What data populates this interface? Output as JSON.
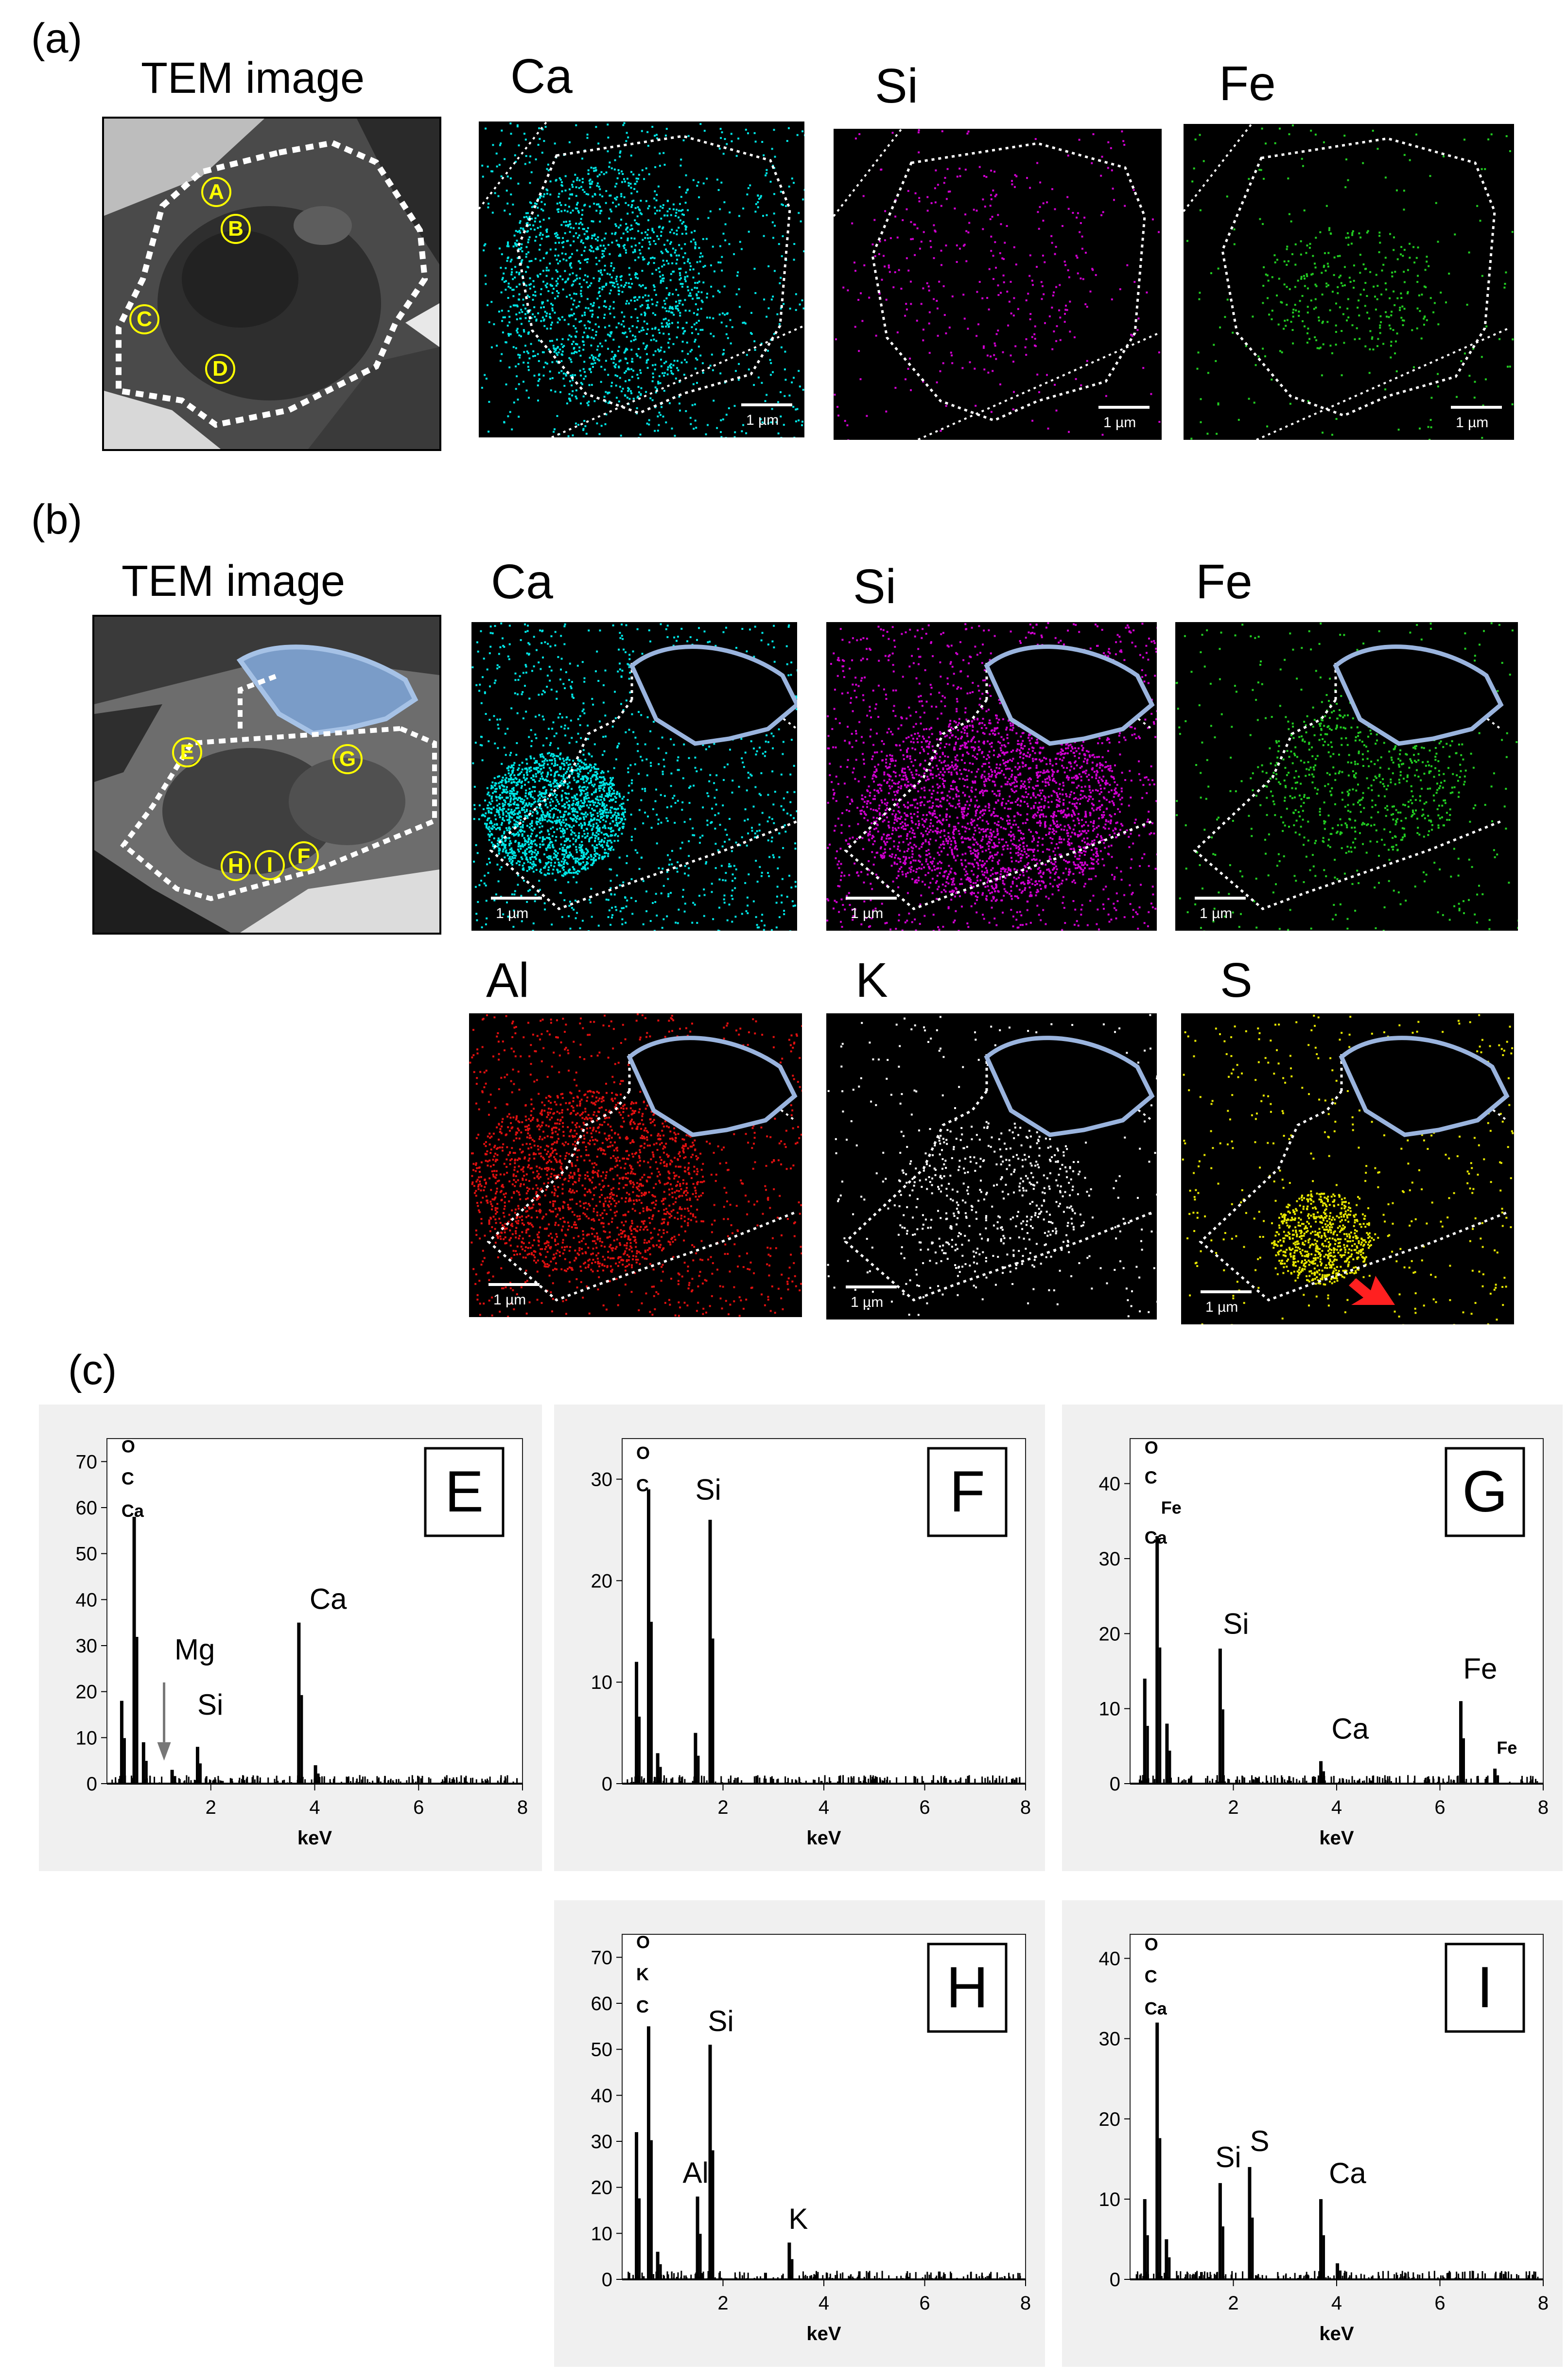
{
  "panel_a": {
    "label": "(a)",
    "tem_title": "TEM image",
    "spots": [
      "A",
      "B",
      "C",
      "D"
    ],
    "maps": [
      {
        "element": "Ca",
        "color": "#00e5e5",
        "density": 1900,
        "scale": "1 µm"
      },
      {
        "element": "Si",
        "color": "#d000d0",
        "density": 380,
        "scale": "1 µm"
      },
      {
        "element": "Fe",
        "color": "#22cc22",
        "density": 420,
        "scale": "1 µm"
      }
    ]
  },
  "panel_b": {
    "label": "(b)",
    "tem_title": "TEM image",
    "spots": [
      "E",
      "G",
      "H",
      "I",
      "F"
    ],
    "maps": [
      {
        "element": "Ca",
        "color": "#00e5e5",
        "density": 2600,
        "scale": "1 µm"
      },
      {
        "element": "Si",
        "color": "#d000d0",
        "density": 3200,
        "scale": "1 µm"
      },
      {
        "element": "Fe",
        "color": "#22cc22",
        "density": 900,
        "scale": "1 µm"
      },
      {
        "element": "Al",
        "color": "#e01010",
        "density": 2400,
        "scale": "1 µm"
      },
      {
        "element": "K",
        "color": "#ffffff",
        "density": 700,
        "scale": "1 µm"
      },
      {
        "element": "S",
        "color": "#e6e600",
        "density": 1100,
        "scale": "1 µm"
      }
    ],
    "arrow_color": "#ff2020"
  },
  "panel_c": {
    "label": "(c)",
    "chart_data": [
      {
        "type": "bar",
        "title": "E",
        "xlabel": "keV",
        "xlim": [
          0,
          8
        ],
        "ylim": [
          0,
          75
        ],
        "yticks": [
          0,
          10,
          20,
          30,
          40,
          50,
          60,
          70
        ],
        "xticks": [
          2,
          4,
          6,
          8
        ],
        "peaks": [
          [
            0.28,
            18
          ],
          [
            0.52,
            58
          ],
          [
            0.7,
            9
          ],
          [
            1.25,
            3
          ],
          [
            1.74,
            8
          ],
          [
            3.69,
            35
          ],
          [
            4.01,
            4
          ]
        ],
        "annotations": [
          "O",
          "C",
          "Ca",
          "Mg",
          "Si",
          "Ca"
        ]
      },
      {
        "type": "bar",
        "title": "F",
        "xlabel": "keV",
        "xlim": [
          0,
          8
        ],
        "ylim": [
          0,
          34
        ],
        "yticks": [
          0,
          10,
          20,
          30
        ],
        "xticks": [
          2,
          4,
          6,
          8
        ],
        "peaks": [
          [
            0.28,
            12
          ],
          [
            0.52,
            29
          ],
          [
            0.7,
            3
          ],
          [
            1.45,
            5
          ],
          [
            1.74,
            26
          ]
        ],
        "annotations": [
          "O",
          "C",
          "Si"
        ]
      },
      {
        "type": "bar",
        "title": "G",
        "xlabel": "keV",
        "xlim": [
          0,
          8
        ],
        "ylim": [
          0,
          46
        ],
        "yticks": [
          0,
          10,
          20,
          30,
          40
        ],
        "xticks": [
          2,
          4,
          6,
          8
        ],
        "peaks": [
          [
            0.28,
            14
          ],
          [
            0.52,
            33
          ],
          [
            0.71,
            8
          ],
          [
            1.74,
            18
          ],
          [
            3.69,
            3
          ],
          [
            6.4,
            11
          ],
          [
            7.06,
            2
          ]
        ],
        "annotations": [
          "O",
          "C",
          "Fe",
          "Ca",
          "Si",
          "Ca",
          "Fe",
          "Fe"
        ]
      },
      {
        "type": "bar",
        "title": "H",
        "xlabel": "keV",
        "xlim": [
          0,
          8
        ],
        "ylim": [
          0,
          75
        ],
        "yticks": [
          0,
          10,
          20,
          30,
          40,
          50,
          60,
          70
        ],
        "xticks": [
          2,
          4,
          6,
          8
        ],
        "peaks": [
          [
            0.28,
            32
          ],
          [
            0.52,
            55
          ],
          [
            0.7,
            6
          ],
          [
            1.49,
            18
          ],
          [
            1.74,
            51
          ],
          [
            3.31,
            8
          ]
        ],
        "annotations": [
          "O",
          "K",
          "C",
          "Al",
          "Si",
          "K"
        ]
      },
      {
        "type": "bar",
        "title": "I",
        "xlabel": "keV",
        "xlim": [
          0,
          8
        ],
        "ylim": [
          0,
          43
        ],
        "yticks": [
          0,
          10,
          20,
          30,
          40
        ],
        "xticks": [
          2,
          4,
          6,
          8
        ],
        "peaks": [
          [
            0.28,
            10
          ],
          [
            0.52,
            32
          ],
          [
            0.7,
            5
          ],
          [
            1.74,
            12
          ],
          [
            2.31,
            14
          ],
          [
            3.69,
            10
          ],
          [
            4.01,
            2
          ]
        ],
        "annotations": [
          "O",
          "C",
          "Ca",
          "Si",
          "S",
          "Ca"
        ]
      }
    ]
  }
}
